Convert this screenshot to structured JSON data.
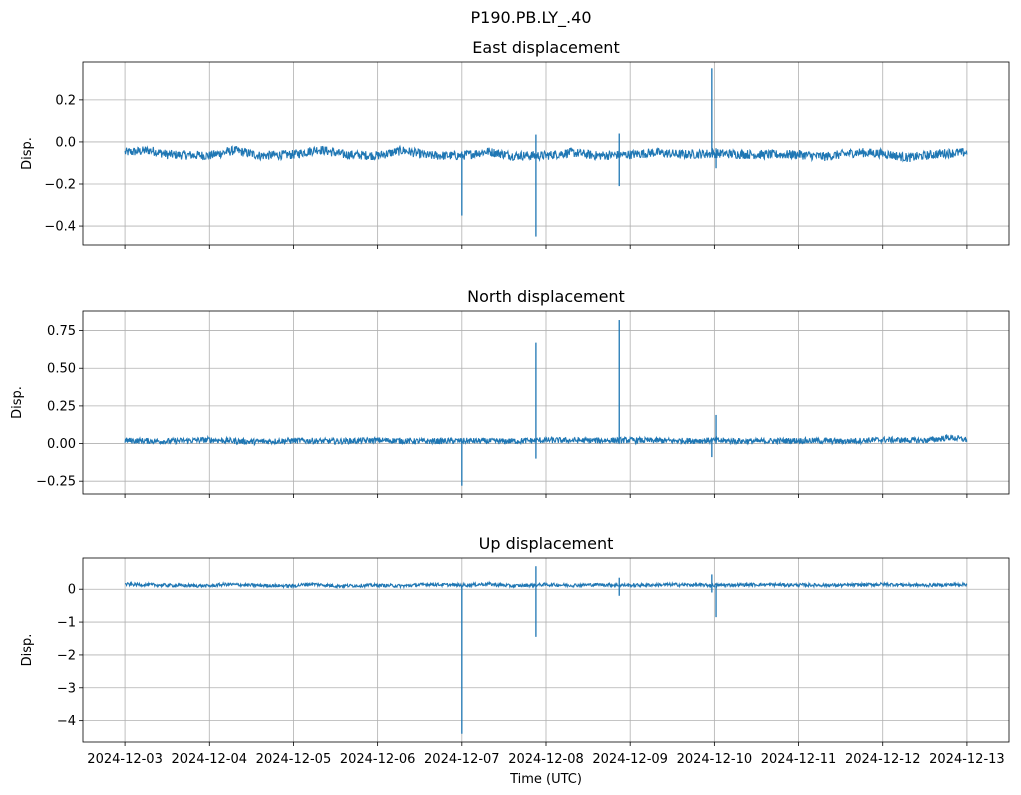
{
  "suptitle": "P190.PB.LY_.40",
  "xlabel": "Time (UTC)",
  "x_ticks": [
    "2024-12-03",
    "2024-12-04",
    "2024-12-05",
    "2024-12-06",
    "2024-12-07",
    "2024-12-08",
    "2024-12-09",
    "2024-12-10",
    "2024-12-11",
    "2024-12-12",
    "2024-12-13"
  ],
  "colors": {
    "series": "#1f77b4",
    "grid": "#b0b0b0"
  },
  "chart_data": [
    {
      "type": "line",
      "title": "East displacement",
      "ylabel": "Disp.",
      "xlim": [
        -0.5,
        10.5
      ],
      "ylim": [
        -0.49,
        0.38
      ],
      "yticks": [
        -0.4,
        -0.2,
        0.0,
        0.2
      ],
      "ytick_labels": [
        "−0.4",
        "−0.2",
        "0.0",
        "0.2"
      ],
      "grid": true,
      "baseline": [
        [
          0,
          -0.05
        ],
        [
          0.3,
          -0.04
        ],
        [
          0.5,
          -0.06
        ],
        [
          1.0,
          -0.065
        ],
        [
          1.3,
          -0.04
        ],
        [
          1.6,
          -0.065
        ],
        [
          2.0,
          -0.06
        ],
        [
          2.3,
          -0.035
        ],
        [
          2.6,
          -0.06
        ],
        [
          3.0,
          -0.065
        ],
        [
          3.3,
          -0.04
        ],
        [
          3.6,
          -0.065
        ],
        [
          4.0,
          -0.065
        ],
        [
          4.3,
          -0.045
        ],
        [
          4.6,
          -0.065
        ],
        [
          5.0,
          -0.065
        ],
        [
          5.3,
          -0.05
        ],
        [
          5.6,
          -0.065
        ],
        [
          6.0,
          -0.06
        ],
        [
          6.3,
          -0.05
        ],
        [
          6.6,
          -0.06
        ],
        [
          7.0,
          -0.055
        ],
        [
          7.5,
          -0.06
        ],
        [
          8.0,
          -0.06
        ],
        [
          8.3,
          -0.07
        ],
        [
          8.7,
          -0.05
        ],
        [
          9.0,
          -0.055
        ],
        [
          9.3,
          -0.075
        ],
        [
          9.7,
          -0.055
        ],
        [
          10.0,
          -0.05
        ]
      ],
      "noise": 0.022,
      "spikes": [
        {
          "x": 4.0,
          "min": -0.35,
          "max": -0.06
        },
        {
          "x": 4.88,
          "min": -0.45,
          "max": 0.035
        },
        {
          "x": 5.87,
          "min": -0.21,
          "max": 0.04
        },
        {
          "x": 6.97,
          "min": -0.05,
          "max": 0.35
        },
        {
          "x": 7.02,
          "min": -0.125,
          "max": -0.03
        }
      ]
    },
    {
      "type": "line",
      "title": "North displacement",
      "ylabel": "Disp.",
      "xlim": [
        -0.5,
        10.5
      ],
      "ylim": [
        -0.335,
        0.88
      ],
      "yticks": [
        -0.25,
        0.0,
        0.25,
        0.5,
        0.75
      ],
      "ytick_labels": [
        "−0.25",
        "0.00",
        "0.25",
        "0.50",
        "0.75"
      ],
      "grid": true,
      "baseline": [
        [
          0,
          0.02
        ],
        [
          0.5,
          0.015
        ],
        [
          1.0,
          0.025
        ],
        [
          1.5,
          0.012
        ],
        [
          2.0,
          0.02
        ],
        [
          2.5,
          0.015
        ],
        [
          3.0,
          0.022
        ],
        [
          3.5,
          0.015
        ],
        [
          4.0,
          0.018
        ],
        [
          4.5,
          0.015
        ],
        [
          5.0,
          0.022
        ],
        [
          5.5,
          0.02
        ],
        [
          6.0,
          0.022
        ],
        [
          6.5,
          0.018
        ],
        [
          7.0,
          0.02
        ],
        [
          7.5,
          0.015
        ],
        [
          8.0,
          0.02
        ],
        [
          8.5,
          0.015
        ],
        [
          9.0,
          0.025
        ],
        [
          9.5,
          0.02
        ],
        [
          9.8,
          0.04
        ],
        [
          10.0,
          0.025
        ]
      ],
      "noise": 0.02,
      "spikes": [
        {
          "x": 4.0,
          "min": -0.28,
          "max": 0.02
        },
        {
          "x": 4.88,
          "min": -0.1,
          "max": 0.67
        },
        {
          "x": 5.87,
          "min": 0.0,
          "max": 0.82
        },
        {
          "x": 6.97,
          "min": -0.09,
          "max": 0.02
        },
        {
          "x": 7.02,
          "min": 0.0,
          "max": 0.19
        }
      ]
    },
    {
      "type": "line",
      "title": "Up displacement",
      "ylabel": "Disp.",
      "xlim": [
        -0.5,
        10.5
      ],
      "ylim": [
        -4.65,
        0.95
      ],
      "yticks": [
        -4,
        -3,
        -2,
        -1,
        0
      ],
      "ytick_labels": [
        "−4",
        "−3",
        "−2",
        "−1",
        "0"
      ],
      "grid": true,
      "baseline": [
        [
          0,
          0.15
        ],
        [
          0.5,
          0.12
        ],
        [
          1.0,
          0.1
        ],
        [
          1.2,
          0.15
        ],
        [
          1.5,
          0.12
        ],
        [
          2.0,
          0.1
        ],
        [
          2.2,
          0.16
        ],
        [
          2.5,
          0.1
        ],
        [
          3.0,
          0.12
        ],
        [
          3.3,
          0.1
        ],
        [
          3.6,
          0.15
        ],
        [
          4.0,
          0.12
        ],
        [
          4.3,
          0.16
        ],
        [
          4.6,
          0.1
        ],
        [
          5.0,
          0.14
        ],
        [
          5.3,
          0.12
        ],
        [
          5.6,
          0.14
        ],
        [
          6.0,
          0.12
        ],
        [
          6.5,
          0.14
        ],
        [
          7.0,
          0.12
        ],
        [
          7.5,
          0.14
        ],
        [
          8.0,
          0.13
        ],
        [
          8.5,
          0.12
        ],
        [
          9.0,
          0.15
        ],
        [
          9.5,
          0.12
        ],
        [
          10.0,
          0.15
        ]
      ],
      "noise": 0.05,
      "spikes": [
        {
          "x": 4.0,
          "min": -4.4,
          "max": 0.1
        },
        {
          "x": 4.88,
          "min": -1.45,
          "max": 0.7
        },
        {
          "x": 5.87,
          "min": -0.2,
          "max": 0.35
        },
        {
          "x": 6.97,
          "min": -0.1,
          "max": 0.45
        },
        {
          "x": 7.02,
          "min": -0.85,
          "max": 0.1
        }
      ]
    }
  ]
}
